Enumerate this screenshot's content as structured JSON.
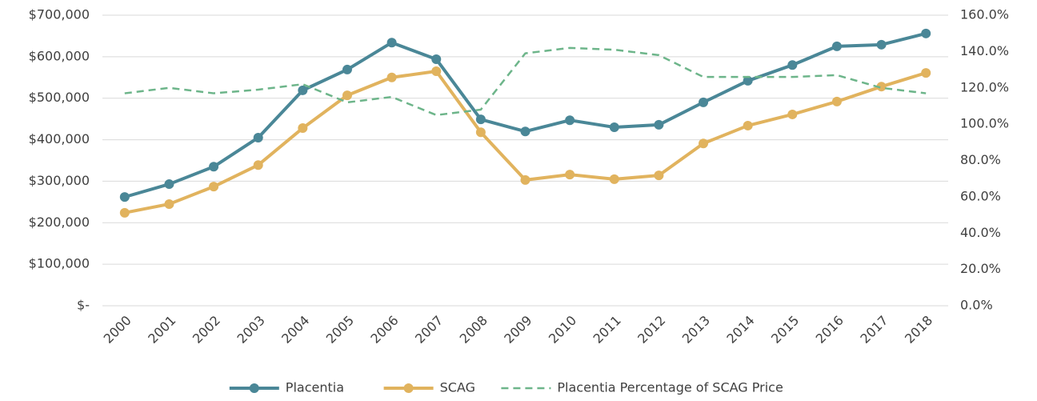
{
  "chart_data": {
    "type": "line",
    "categories": [
      "2000",
      "2001",
      "2002",
      "2003",
      "2004",
      "2005",
      "2006",
      "2007",
      "2008",
      "2009",
      "2010",
      "2011",
      "2012",
      "2013",
      "2014",
      "2015",
      "2016",
      "2017",
      "2018"
    ],
    "series": [
      {
        "name": "Placentia",
        "color": "#4a8797",
        "marker": true,
        "values": [
          262000,
          293000,
          335000,
          405000,
          519000,
          569000,
          634000,
          594000,
          449000,
          420000,
          447000,
          430000,
          436000,
          490000,
          542000,
          580000,
          625000,
          629000,
          656000
        ]
      },
      {
        "name": "SCAG",
        "color": "#e1b35e",
        "marker": true,
        "values": [
          224000,
          245000,
          287000,
          339000,
          428000,
          507000,
          550000,
          565000,
          418000,
          303000,
          316000,
          305000,
          314000,
          391000,
          434000,
          461000,
          492000,
          528000,
          561000
        ]
      },
      {
        "name": "Placentia Percentage of SCAG Price",
        "color": "#6db58a",
        "dashed": true,
        "axis": "y2",
        "values": [
          117,
          120,
          117,
          119,
          122,
          112,
          115,
          105,
          108,
          139,
          142,
          141,
          138,
          126,
          126,
          126,
          127,
          120,
          117
        ]
      }
    ],
    "ylim": [
      0,
      700000
    ],
    "yticks": [
      {
        "value": 0,
        "label": "$-"
      },
      {
        "value": 100000,
        "label": "$100,000"
      },
      {
        "value": 200000,
        "label": "$200,000"
      },
      {
        "value": 300000,
        "label": "$300,000"
      },
      {
        "value": 400000,
        "label": "$400,000"
      },
      {
        "value": 500000,
        "label": "$500,000"
      },
      {
        "value": 600000,
        "label": "$600,000"
      },
      {
        "value": 700000,
        "label": "$700,000"
      }
    ],
    "y2lim": [
      0,
      160
    ],
    "y2ticks": [
      {
        "value": 0,
        "label": "0.0%"
      },
      {
        "value": 20,
        "label": "20.0%"
      },
      {
        "value": 40,
        "label": "40.0%"
      },
      {
        "value": 60,
        "label": "60.0%"
      },
      {
        "value": 80,
        "label": "80.0%"
      },
      {
        "value": 100,
        "label": "100.0%"
      },
      {
        "value": 120,
        "label": "120.0%"
      },
      {
        "value": 140,
        "label": "140.0%"
      },
      {
        "value": 160,
        "label": "160.0%"
      }
    ],
    "grid": true,
    "legend": "bottom"
  }
}
